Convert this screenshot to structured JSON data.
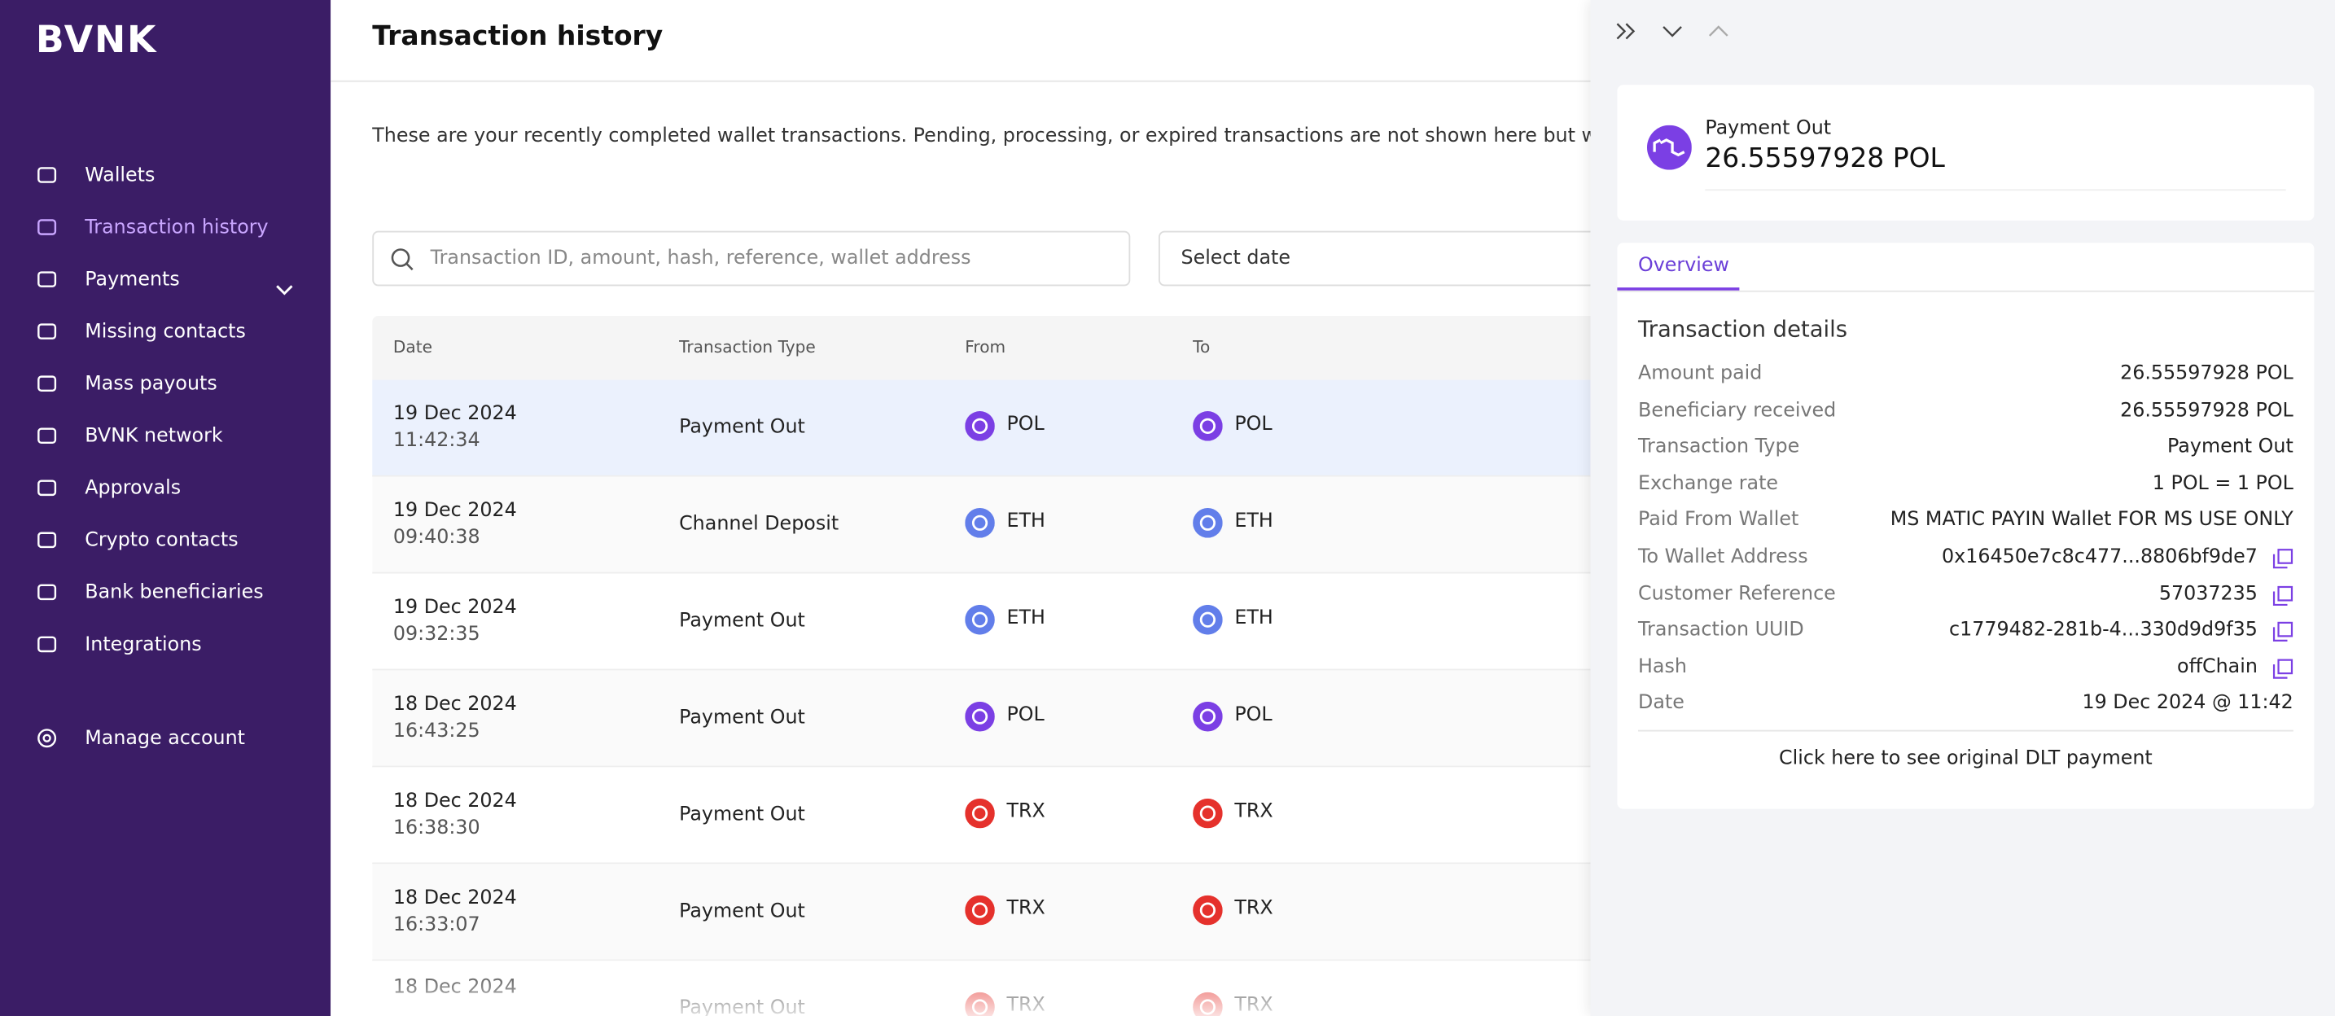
{
  "logo": "BVNK",
  "nav": [
    "Wallets",
    "Transaction history",
    "Payments",
    "Missing contacts",
    "Mass payouts",
    "BVNK network",
    "Approvals",
    "Crypto contacts",
    "Bank beneficiaries",
    "Integrations"
  ],
  "active_nav": 1,
  "account": "Manage account",
  "page": {
    "title": "Transaction history",
    "description": "These are your recently completed wallet transactions. Pending, processing, or expired transactions are not shown here but will be included in",
    "search_placeholder": "Transaction ID, amount, hash, reference, wallet address",
    "date_placeholder": "Select date"
  },
  "table": {
    "headers": [
      "Date",
      "Transaction Type",
      "From",
      "To"
    ],
    "rows": [
      {
        "date": "19 Dec 2024",
        "time": "11:42:34",
        "type": "Payment Out",
        "from": "POL",
        "to": "POL"
      },
      {
        "date": "19 Dec 2024",
        "time": "09:40:38",
        "type": "Channel Deposit",
        "from": "ETH",
        "to": "ETH"
      },
      {
        "date": "19 Dec 2024",
        "time": "09:32:35",
        "type": "Payment Out",
        "from": "ETH",
        "to": "ETH"
      },
      {
        "date": "18 Dec 2024",
        "time": "16:43:25",
        "type": "Payment Out",
        "from": "POL",
        "to": "POL"
      },
      {
        "date": "18 Dec 2024",
        "time": "16:38:30",
        "type": "Payment Out",
        "from": "TRX",
        "to": "TRX"
      },
      {
        "date": "18 Dec 2024",
        "time": "16:33:07",
        "type": "Payment Out",
        "from": "TRX",
        "to": "TRX"
      },
      {
        "date": "18 Dec 2024",
        "type": "Payment Out",
        "from": "TRX",
        "to": "TRX"
      }
    ]
  },
  "panel": {
    "type": "Payment Out",
    "amount": "26.55597928 POL",
    "tab": "Overview",
    "section": "Transaction details",
    "details": [
      {
        "label": "Amount paid",
        "value": "26.55597928 POL"
      },
      {
        "label": "Beneficiary received",
        "value": "26.55597928 POL"
      },
      {
        "label": "Transaction Type",
        "value": "Payment Out"
      },
      {
        "label": "Exchange rate",
        "value": "1 POL = 1 POL"
      },
      {
        "label": "Paid From Wallet",
        "value": "MS MATIC PAYIN Wallet FOR MS USE ONLY"
      },
      {
        "label": "To Wallet Address",
        "value": "0x16450e7c8c477...8806bf9de7",
        "copy": true
      },
      {
        "label": "Customer Reference",
        "value": "57037235",
        "copy": true
      },
      {
        "label": "Transaction UUID",
        "value": "c1779482-281b-4...330d9d9f35",
        "copy": true
      },
      {
        "label": "Hash",
        "value": "offChain",
        "copy": true
      },
      {
        "label": "Date",
        "value": "19 Dec 2024 @ 11:42"
      }
    ],
    "link": "Click here to see original DLT payment"
  }
}
